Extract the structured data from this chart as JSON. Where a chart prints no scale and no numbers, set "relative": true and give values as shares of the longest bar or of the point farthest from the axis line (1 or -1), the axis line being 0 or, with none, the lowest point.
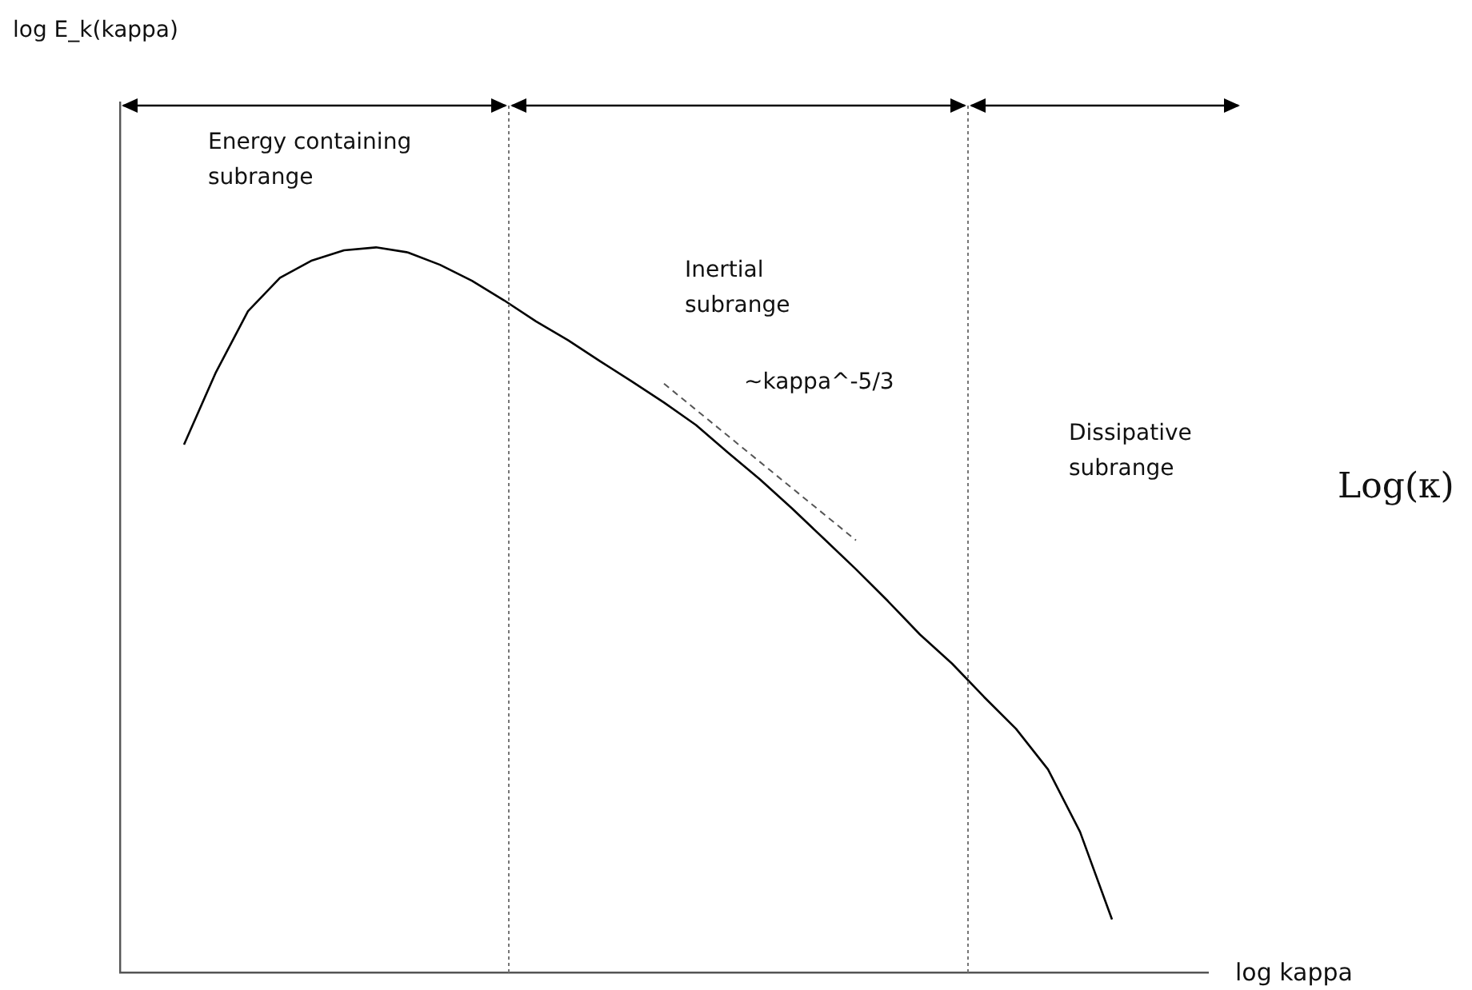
{
  "chart_data": {
    "type": "line",
    "relative": true,
    "xlabel": "log kappa",
    "marker": "none",
    "categories": [
      null,
      null,
      null,
      null,
      null,
      null,
      null,
      null,
      null,
      null,
      null,
      null,
      null,
      null,
      null,
      null,
      null,
      null,
      null,
      null,
      null,
      null,
      null,
      null,
      null,
      null,
      null,
      null,
      null,
      null,
      null,
      null,
      null,
      null,
      null
    ],
    "series": [
      {
        "color": "#000000",
        "line_style": "solid",
        "values": [
          null,
          null,
          0.728,
          0.828,
          0.912,
          0.958,
          0.982,
          0.996,
          1.0,
          0.993,
          0.976,
          0.954,
          0.927,
          0.898,
          0.872,
          0.843,
          0.815,
          0.786,
          0.755,
          0.717,
          0.68,
          0.64,
          0.598,
          0.556,
          0.512,
          0.466,
          0.426,
          0.38,
          0.336,
          0.28,
          0.194,
          0.073,
          null,
          null,
          null
        ]
      },
      {
        "color": "#555555",
        "line_style": "dashed",
        "values": [
          null,
          null,
          null,
          null,
          null,
          null,
          null,
          null,
          null,
          null,
          null,
          null,
          null,
          null,
          null,
          null,
          null,
          0.812,
          null,
          null,
          null,
          null,
          null,
          0.596,
          null,
          null,
          null,
          null,
          null,
          null,
          null,
          null,
          null,
          null,
          null
        ]
      }
    ],
    "annotations": [
      "log E_k(kappa)",
      "Energy containing\nsubrange",
      "Inertial\nsubrange",
      "~kappa^-5/3",
      "Dissipative\nsubrange",
      "Log(κ)"
    ]
  }
}
